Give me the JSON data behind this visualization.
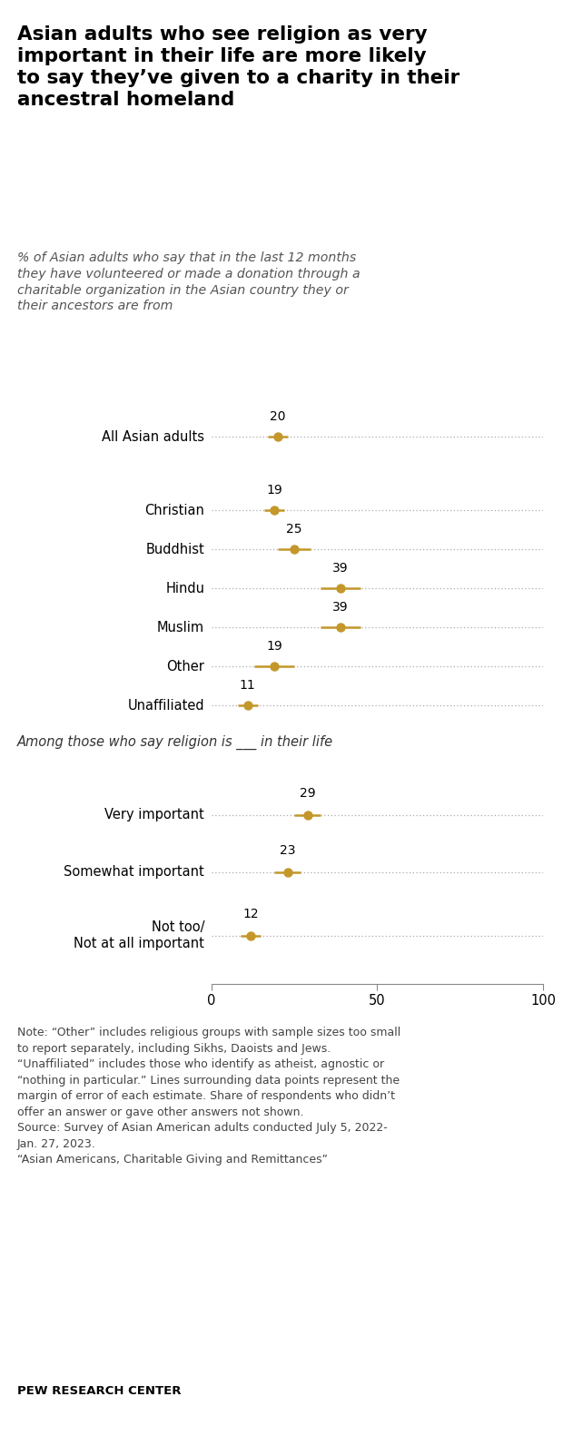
{
  "title": "Asian adults who see religion as very\nimportant in their life are more likely\nto say they’ve given to a charity in their\nancestral homeland",
  "subtitle": "% of Asian adults who say that in the last 12 months\nthey have volunteered or made a donation through a\ncharitable organization in the Asian country they or\ntheir ancestors are from",
  "section2_header": "Among those who say religion is ___ in their life",
  "group1_labels": [
    "All Asian adults",
    "Christian",
    "Buddhist",
    "Hindu",
    "Muslim",
    "Other",
    "Unaffiliated"
  ],
  "group1_values": [
    20,
    19,
    25,
    39,
    39,
    19,
    11
  ],
  "group1_errors": [
    3,
    3,
    5,
    6,
    6,
    6,
    3
  ],
  "group2_labels": [
    "Very important",
    "Somewhat important",
    "Not too/\nNot at all important"
  ],
  "group2_values": [
    29,
    23,
    12
  ],
  "group2_errors": [
    4,
    4,
    3
  ],
  "dot_color": "#C4972A",
  "line_color": "#C4972A",
  "dotted_line_color": "#AAAAAA",
  "xlim": [
    0,
    100
  ],
  "xticks": [
    0,
    50,
    100
  ],
  "note_lines": [
    "Note: “Other” includes religious groups with sample sizes too small",
    "to report separately, including Sikhs, Daoists and Jews.",
    "“Unaffiliated” includes those who identify as atheist, agnostic or",
    "“nothing in particular.” Lines surrounding data points represent the",
    "margin of error of each estimate. Share of respondents who didn’t",
    "offer an answer or gave other answers not shown.",
    "Source: Survey of Asian American adults conducted July 5, 2022-",
    "Jan. 27, 2023.",
    "“Asian Americans, Charitable Giving and Remittances”"
  ],
  "pew_label": "PEW RESEARCH CENTER",
  "background_color": "#FFFFFF",
  "text_color": "#000000",
  "note_color": "#555555"
}
